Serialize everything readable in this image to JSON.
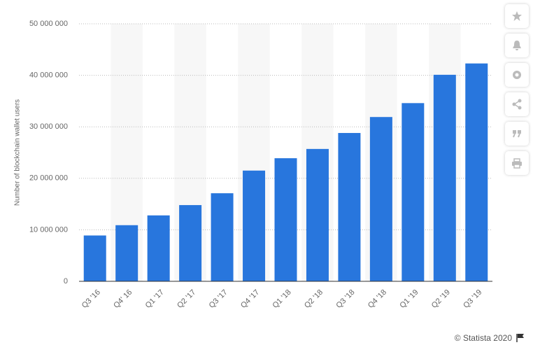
{
  "chart_data": {
    "type": "bar",
    "y_label": "Number of blockchain wallet users",
    "categories": [
      "Q3 '16",
      "Q4' 16",
      "Q1 '17",
      "Q2 '17",
      "Q3 '17",
      "Q4 '17",
      "Q1 '18",
      "Q2 '18",
      "Q3 '18",
      "Q4 '18",
      "Q1 '19",
      "Q2 '19",
      "Q3 '19"
    ],
    "values": [
      8900000,
      10900000,
      12800000,
      14800000,
      17100000,
      21500000,
      23900000,
      25700000,
      28800000,
      31900000,
      34600000,
      40100000,
      42300000
    ],
    "color": "#2876dd",
    "ylim": [
      0,
      50000000
    ],
    "yticks": [
      0,
      {
        "value": 10000000,
        "label": "10 000 000"
      },
      {
        "value": 20000000,
        "label": "20 000 000"
      },
      {
        "value": 30000000,
        "label": "30 000 000"
      },
      {
        "value": 40000000,
        "label": "40 000 000"
      },
      {
        "value": 50000000,
        "label": "50 000 000"
      }
    ],
    "grid": true
  },
  "source": "© Statista 2020"
}
